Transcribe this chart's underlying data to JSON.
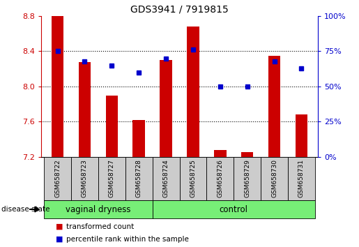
{
  "title": "GDS3941 / 7919815",
  "samples": [
    "GSM658722",
    "GSM658723",
    "GSM658727",
    "GSM658728",
    "GSM658724",
    "GSM658725",
    "GSM658726",
    "GSM658729",
    "GSM658730",
    "GSM658731"
  ],
  "red_bars": [
    8.8,
    8.28,
    7.9,
    7.62,
    8.3,
    8.68,
    7.28,
    7.25,
    8.35,
    7.68
  ],
  "blue_squares": [
    75,
    68,
    65,
    60,
    70,
    76,
    50,
    50,
    68,
    63
  ],
  "bar_color": "#cc0000",
  "square_color": "#0000cc",
  "ylim_left": [
    7.2,
    8.8
  ],
  "ylim_right": [
    0,
    100
  ],
  "yticks_left": [
    7.2,
    7.6,
    8.0,
    8.4,
    8.8
  ],
  "yticks_right": [
    0,
    25,
    50,
    75,
    100
  ],
  "ytick_labels_right": [
    "0%",
    "25%",
    "50%",
    "75%",
    "100%"
  ],
  "group1_label": "vaginal dryness",
  "group2_label": "control",
  "group1_count": 4,
  "group2_count": 6,
  "legend_bar_label": "transformed count",
  "legend_sq_label": "percentile rank within the sample",
  "disease_state_label": "disease state",
  "group_bg_color": "#77ee77",
  "sample_bg_color": "#cccccc",
  "bar_bottom": 7.2,
  "bar_width": 0.45
}
